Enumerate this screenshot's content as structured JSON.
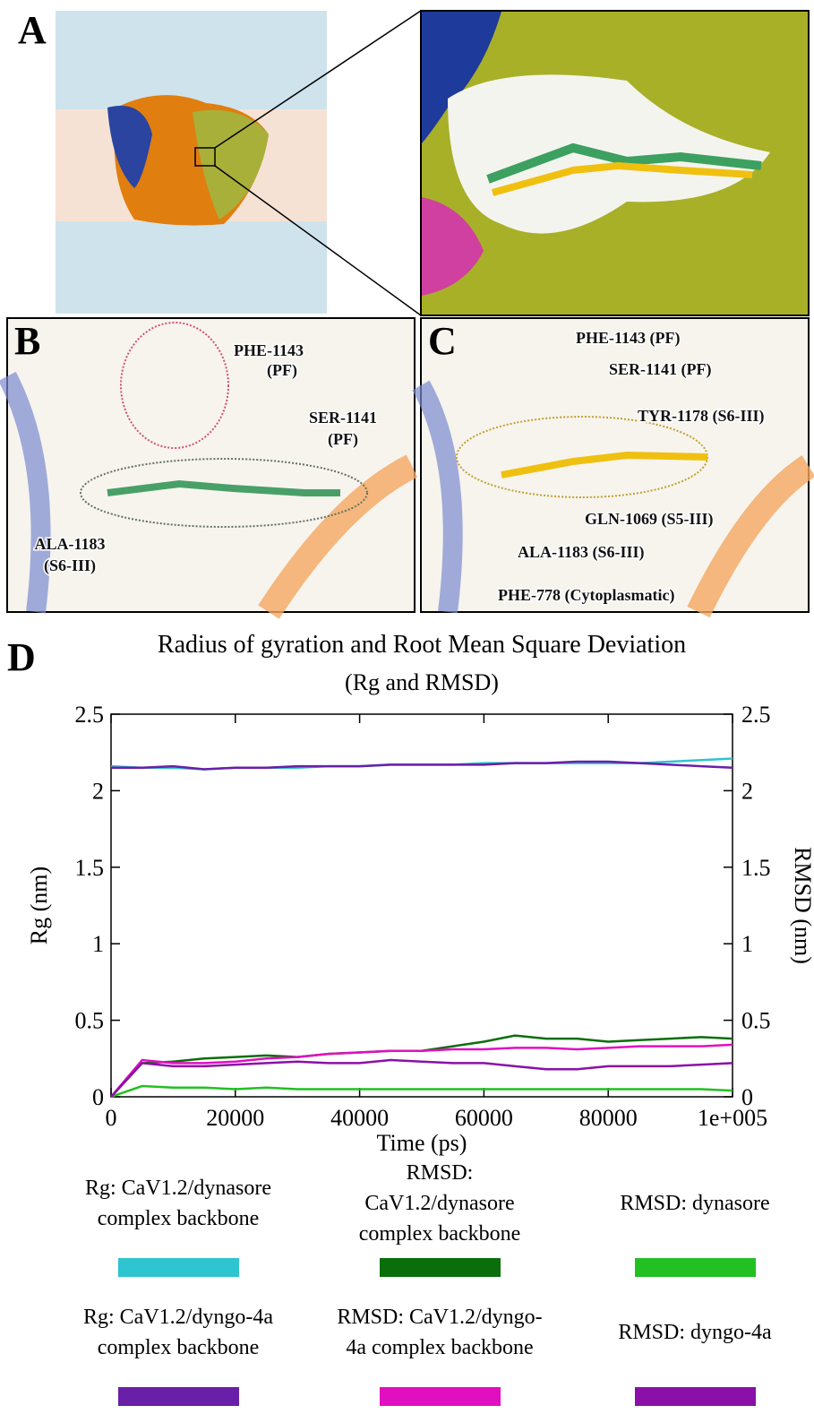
{
  "panels": {
    "A": {
      "label": "A"
    },
    "B": {
      "label": "B",
      "annotations": [
        "PHE-1143",
        "(PF)",
        "SER-1141",
        "(PF)",
        "ALA-1183",
        "(S6-III)"
      ]
    },
    "C": {
      "label": "C",
      "annotations": [
        "PHE-1143 (PF)",
        "SER-1141 (PF)",
        "TYR-1178 (S6-III)",
        "GLN-1069 (S5-III)",
        "ALA-1183 (S6-III)",
        "PHE-778 (Cytoplasmatic)"
      ]
    },
    "D": {
      "label": "D"
    }
  },
  "chart_data": {
    "type": "line",
    "title": "Radius of gyration and Root Mean Square Deviation",
    "subtitle": "(Rg and RMSD)",
    "x_label": "Time (ps)",
    "y_label": "Rg (nm)",
    "y2_label": "RMSD (nm)",
    "x": [
      0,
      5000,
      10000,
      15000,
      20000,
      25000,
      30000,
      35000,
      40000,
      45000,
      50000,
      55000,
      60000,
      65000,
      70000,
      75000,
      80000,
      85000,
      90000,
      95000,
      100000
    ],
    "xlim": [
      0,
      100000
    ],
    "xticks": [
      0,
      20000,
      40000,
      60000,
      80000,
      {
        "value": 100000,
        "label": "1e+005"
      }
    ],
    "ylim": [
      0,
      2.5
    ],
    "yticks": [
      0,
      0.5,
      1,
      1.5,
      2,
      2.5
    ],
    "y2lim": [
      0,
      2.5
    ],
    "y2ticks": [
      0,
      0.5,
      1,
      1.5,
      2,
      2.5
    ],
    "series": [
      {
        "name": "Rg: CaV1.2/dynasore complex backbone",
        "color": "#2ec4d0",
        "axis": "y",
        "values": [
          2.16,
          2.15,
          2.15,
          2.14,
          2.15,
          2.15,
          2.15,
          2.16,
          2.16,
          2.17,
          2.17,
          2.17,
          2.18,
          2.18,
          2.18,
          2.18,
          2.18,
          2.18,
          2.19,
          2.2,
          2.21
        ]
      },
      {
        "name": "RMSD: CaV1.2/dynasore complex backbone",
        "color": "#0a6e0a",
        "axis": "y2",
        "values": [
          0,
          0.22,
          0.23,
          0.25,
          0.26,
          0.27,
          0.26,
          0.28,
          0.29,
          0.3,
          0.3,
          0.33,
          0.36,
          0.4,
          0.38,
          0.38,
          0.36,
          0.37,
          0.38,
          0.39,
          0.38
        ]
      },
      {
        "name": "RMSD: dynasore",
        "color": "#22c022",
        "axis": "y2",
        "values": [
          0,
          0.07,
          0.06,
          0.06,
          0.05,
          0.06,
          0.05,
          0.05,
          0.05,
          0.05,
          0.05,
          0.05,
          0.05,
          0.05,
          0.05,
          0.05,
          0.05,
          0.05,
          0.05,
          0.05,
          0.04
        ]
      },
      {
        "name": "Rg: CaV1.2/dyngo-4a complex backbone",
        "color": "#6a1fa8",
        "axis": "y",
        "values": [
          2.15,
          2.15,
          2.16,
          2.14,
          2.15,
          2.15,
          2.16,
          2.16,
          2.16,
          2.17,
          2.17,
          2.17,
          2.17,
          2.18,
          2.18,
          2.19,
          2.19,
          2.18,
          2.17,
          2.16,
          2.15
        ]
      },
      {
        "name": "RMSD: CaV1.2/dyngo-4a complex backbone",
        "color": "#e010c0",
        "axis": "y2",
        "values": [
          0,
          0.24,
          0.22,
          0.22,
          0.23,
          0.25,
          0.26,
          0.28,
          0.29,
          0.3,
          0.3,
          0.31,
          0.31,
          0.32,
          0.32,
          0.31,
          0.32,
          0.33,
          0.33,
          0.33,
          0.34
        ]
      },
      {
        "name": "RMSD: dyngo-4a",
        "color": "#8a10a8",
        "axis": "y2",
        "values": [
          0,
          0.22,
          0.2,
          0.2,
          0.21,
          0.22,
          0.23,
          0.22,
          0.22,
          0.24,
          0.23,
          0.22,
          0.22,
          0.2,
          0.18,
          0.18,
          0.2,
          0.2,
          0.2,
          0.21,
          0.22
        ]
      }
    ]
  }
}
